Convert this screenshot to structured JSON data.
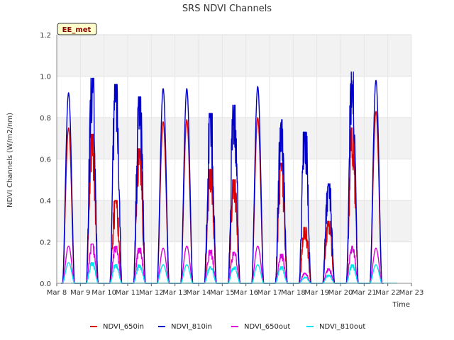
{
  "chart_data": {
    "type": "line",
    "title": "SRS NDVI Channels",
    "site_tag": "EE_met",
    "xlabel": "Time",
    "ylabel": "NDVI Channels (W/m2/nm)",
    "x_ticks": [
      "Mar 8",
      "Mar 9",
      "Mar 10",
      "Mar 11",
      "Mar 12",
      "Mar 13",
      "Mar 14",
      "Mar 15",
      "Mar 16",
      "Mar 17",
      "Mar 18",
      "Mar 19",
      "Mar 20",
      "Mar 21",
      "Mar 22",
      "Mar 23"
    ],
    "y_ticks": [
      "0.0",
      "0.2",
      "0.4",
      "0.6",
      "0.8",
      "1.0",
      "1.2"
    ],
    "xlim_days": [
      0,
      15
    ],
    "ylim": [
      0,
      1.2
    ],
    "grid": true,
    "legend_position": "bottom",
    "series": [
      {
        "name": "NDVI_650in",
        "color": "#dd0000",
        "noon_peaks": [
          0.75,
          0.72,
          0.4,
          0.65,
          0.78,
          0.79,
          0.55,
          0.5,
          0.8,
          0.58,
          0.27,
          0.3,
          0.75,
          0.83
        ]
      },
      {
        "name": "NDVI_810in",
        "color": "#0000cc",
        "noon_peaks": [
          0.92,
          0.99,
          0.96,
          0.9,
          0.94,
          0.94,
          0.82,
          0.86,
          0.95,
          0.79,
          0.73,
          0.48,
          1.02,
          0.98
        ]
      },
      {
        "name": "NDVI_650out",
        "color": "#dd00dd",
        "noon_peaks": [
          0.18,
          0.19,
          0.18,
          0.17,
          0.17,
          0.18,
          0.16,
          0.15,
          0.18,
          0.14,
          0.05,
          0.07,
          0.18,
          0.17
        ]
      },
      {
        "name": "NDVI_810out",
        "color": "#00e5ee",
        "noon_peaks": [
          0.1,
          0.1,
          0.09,
          0.09,
          0.09,
          0.09,
          0.08,
          0.08,
          0.09,
          0.08,
          0.03,
          0.04,
          0.09,
          0.09
        ]
      }
    ]
  }
}
